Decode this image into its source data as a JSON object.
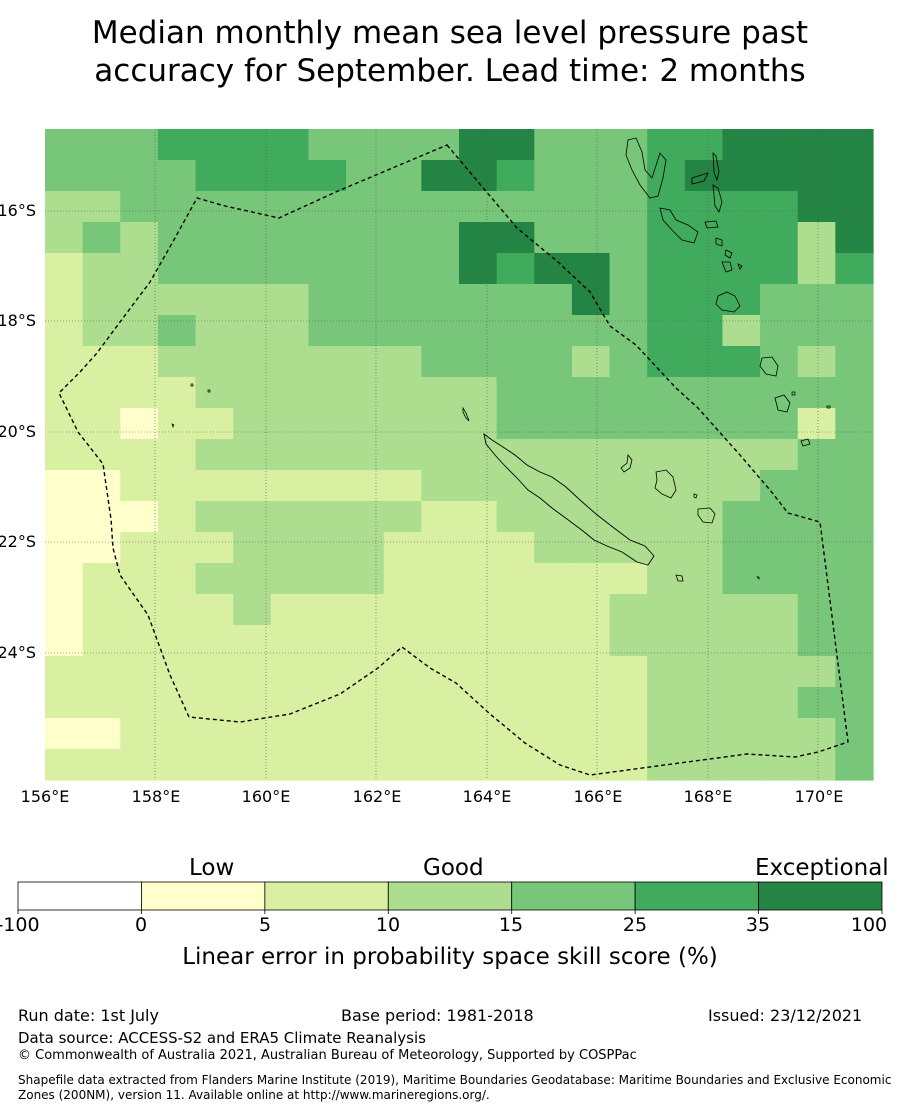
{
  "title_line1": "Median monthly mean sea level pressure past",
  "title_line2": "accuracy for September. Lead time: 2 months",
  "map": {
    "lat_labels": [
      "16°S",
      "18°S",
      "20°S",
      "22°S",
      "24°S"
    ],
    "lon_labels": [
      "156°E",
      "158°E",
      "160°E",
      "162°E",
      "164°E",
      "166°E",
      "168°E",
      "170°E"
    ],
    "colors": {
      "c0": "#ffffcc",
      "c1": "#d9f0a3",
      "c2": "#addd8e",
      "c3": "#78c679",
      "c4": "#41ab5d",
      "c5": "#238443",
      "neg": "#ffffff"
    },
    "grid_rows": [
      "3334444333355333445555",
      "3333444433554333455555",
      "2233333333333333444455",
      "2323333333355333444425",
      "1223333333354553444424",
      "1222222333333353444333",
      "1223222333333333442333",
      "1112222222333323444323",
      "1111222222223333333333",
      "1101122222223333333313",
      "1111222222222222222233",
      "0011111111222222222333",
      "0001222222112222223333",
      "0011122221111222223333",
      "0111222221111111223333",
      "0111121111111112222233",
      "0111111111111112222233",
      "1111111111111111222223",
      "1111111111111111222233",
      "0011111111111111222223",
      "1111111111111111222223"
    ]
  },
  "colorbar": {
    "categories": [
      "Low",
      "Good",
      "Exceptional"
    ],
    "ticks": [
      "-100",
      "0",
      "5",
      "10",
      "15",
      "25",
      "35",
      "100"
    ],
    "segment_colors": [
      "#ffffff",
      "#ffffcc",
      "#d9f0a3",
      "#addd8e",
      "#78c679",
      "#41ab5d",
      "#238443"
    ],
    "title": "Linear error in probability space skill score (%)"
  },
  "footer": {
    "run_date": "Run date: 1st July",
    "base_period": "Base period: 1981-2018",
    "issued": "Issued: 23/12/2021",
    "data_source": "Data source: ACCESS-S2 and ERA5 Climate Reanalysis",
    "copyright": "© Commonwealth of Australia 2021, Australian Bureau of Meteorology, Supported by COSPPac",
    "shapefile_line1": "Shapefile data extracted from Flanders Marine Institute (2019), Maritime Boundaries Geodatabase: Maritime Boundaries and Exclusive Economic",
    "shapefile_line2": "Zones (200NM), version 11. Available online at http://www.marineregions.org/."
  }
}
